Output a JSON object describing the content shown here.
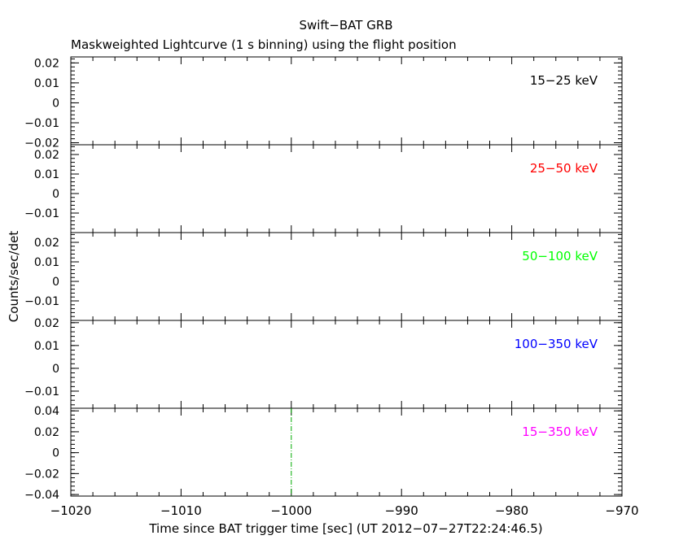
{
  "chart_data": {
    "type": "line",
    "title": "Swift−BAT GRB",
    "subtitle": "Maskweighted Lightcurve (1 s binning) using the flight position",
    "xlabel": "Time since BAT trigger time [sec] (UT 2012−07−27T22:24:46.5)",
    "ylabel": "Counts/sec/det",
    "xlim": [
      -1020,
      -970
    ],
    "x_ticks": [
      -1020,
      -1010,
      -1000,
      -990,
      -980,
      -970
    ],
    "x_tick_labels": [
      "−1020",
      "−1010",
      "−1000",
      "−990",
      "−980",
      "−970"
    ],
    "grid": false,
    "panels": [
      {
        "name": "15−25 keV",
        "color": "#000000",
        "ylim": [
          -0.021,
          0.023
        ],
        "y_ticks": [
          0.02,
          0.01,
          0,
          -0.01,
          -0.02
        ],
        "y_tick_labels": [
          "0.02",
          "0.01",
          "0",
          "−0.01",
          "−0.02"
        ],
        "markers": []
      },
      {
        "name": "25−50 keV",
        "color": "#ff0000",
        "ylim": [
          -0.02,
          0.025
        ],
        "y_ticks": [
          0.02,
          0.01,
          0,
          -0.01
        ],
        "y_tick_labels": [
          "0.02",
          "0.01",
          "0",
          "−0.01"
        ],
        "markers": []
      },
      {
        "name": "50−100 keV",
        "color": "#00ff00",
        "ylim": [
          -0.02,
          0.025
        ],
        "y_ticks": [
          0.02,
          0.01,
          0,
          -0.01
        ],
        "y_tick_labels": [
          "0.02",
          "0.01",
          "0",
          "−0.01"
        ],
        "markers": []
      },
      {
        "name": "100−350 keV",
        "color": "#0000ff",
        "ylim": [
          -0.0175,
          0.021
        ],
        "y_ticks": [
          0.02,
          0.01,
          0,
          -0.01
        ],
        "y_tick_labels": [
          "0.02",
          "0.01",
          "0",
          "−0.01"
        ],
        "markers": []
      },
      {
        "name": "15−350 keV",
        "color": "#ff00ff",
        "ylim": [
          -0.0415,
          0.0425
        ],
        "y_ticks": [
          0.04,
          0.02,
          0,
          -0.02,
          -0.04
        ],
        "y_tick_labels": [
          "0.04",
          "0.02",
          "0",
          "−0.02",
          "−0.04"
        ],
        "markers": [
          {
            "x": -1000,
            "color": "#00aa00",
            "style": "dash-dot"
          }
        ]
      }
    ]
  }
}
